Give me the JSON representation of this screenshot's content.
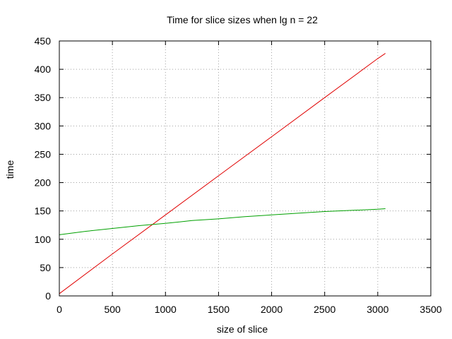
{
  "chart_data": {
    "type": "line",
    "title": "Time for slice sizes when lg n = 22",
    "xlabel": "size of slice",
    "ylabel": "time",
    "xlim": [
      0,
      3500
    ],
    "ylim": [
      0,
      450
    ],
    "xticks": [
      "0",
      "500",
      "1000",
      "1500",
      "2000",
      "2500",
      "3000",
      "3500"
    ],
    "yticks": [
      "0",
      "50",
      "100",
      "150",
      "200",
      "250",
      "300",
      "350",
      "400",
      "450"
    ],
    "grid": true,
    "legend": "none",
    "series": [
      {
        "color": "#e00000",
        "x": [
          0,
          500,
          1000,
          1500,
          2000,
          2500,
          3000,
          3072
        ],
        "y": [
          4,
          74,
          143,
          212,
          281,
          350,
          419,
          428
        ]
      },
      {
        "color": "#00a000",
        "x": [
          0,
          250,
          500,
          750,
          1000,
          1250,
          1500,
          1750,
          2000,
          2250,
          2500,
          2750,
          3000,
          3072
        ],
        "y": [
          108,
          114,
          119,
          124,
          128,
          133,
          136,
          140,
          143,
          146,
          149,
          151,
          153,
          154
        ]
      }
    ]
  }
}
